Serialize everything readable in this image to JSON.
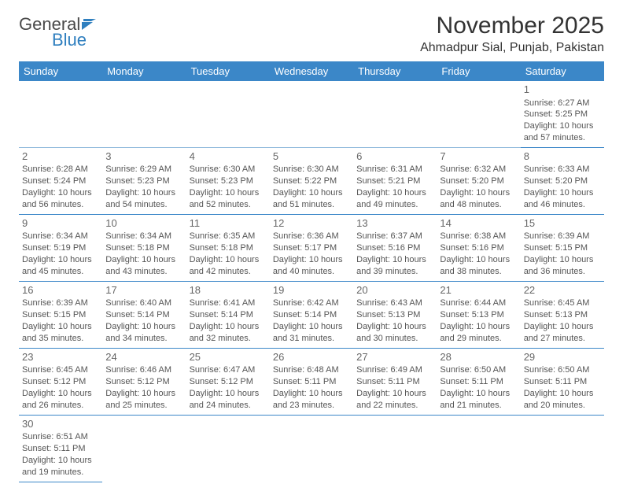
{
  "logo": {
    "word1": "General",
    "word2": "Blue"
  },
  "title": "November 2025",
  "location": "Ahmadpur Sial, Punjab, Pakistan",
  "colors": {
    "header_bg": "#3b87c8",
    "header_text": "#ffffff",
    "border": "#3b87c8",
    "text": "#555555",
    "logo_gray": "#4a4a4a",
    "logo_blue": "#2f7fbf"
  },
  "weekdays": [
    "Sunday",
    "Monday",
    "Tuesday",
    "Wednesday",
    "Thursday",
    "Friday",
    "Saturday"
  ],
  "labels": {
    "sunrise": "Sunrise:",
    "sunset": "Sunset:",
    "daylight": "Daylight:"
  },
  "weeks": [
    [
      null,
      null,
      null,
      null,
      null,
      null,
      {
        "n": "1",
        "sr": "6:27 AM",
        "ss": "5:25 PM",
        "dl": "10 hours and 57 minutes."
      }
    ],
    [
      {
        "n": "2",
        "sr": "6:28 AM",
        "ss": "5:24 PM",
        "dl": "10 hours and 56 minutes."
      },
      {
        "n": "3",
        "sr": "6:29 AM",
        "ss": "5:23 PM",
        "dl": "10 hours and 54 minutes."
      },
      {
        "n": "4",
        "sr": "6:30 AM",
        "ss": "5:23 PM",
        "dl": "10 hours and 52 minutes."
      },
      {
        "n": "5",
        "sr": "6:30 AM",
        "ss": "5:22 PM",
        "dl": "10 hours and 51 minutes."
      },
      {
        "n": "6",
        "sr": "6:31 AM",
        "ss": "5:21 PM",
        "dl": "10 hours and 49 minutes."
      },
      {
        "n": "7",
        "sr": "6:32 AM",
        "ss": "5:20 PM",
        "dl": "10 hours and 48 minutes."
      },
      {
        "n": "8",
        "sr": "6:33 AM",
        "ss": "5:20 PM",
        "dl": "10 hours and 46 minutes."
      }
    ],
    [
      {
        "n": "9",
        "sr": "6:34 AM",
        "ss": "5:19 PM",
        "dl": "10 hours and 45 minutes."
      },
      {
        "n": "10",
        "sr": "6:34 AM",
        "ss": "5:18 PM",
        "dl": "10 hours and 43 minutes."
      },
      {
        "n": "11",
        "sr": "6:35 AM",
        "ss": "5:18 PM",
        "dl": "10 hours and 42 minutes."
      },
      {
        "n": "12",
        "sr": "6:36 AM",
        "ss": "5:17 PM",
        "dl": "10 hours and 40 minutes."
      },
      {
        "n": "13",
        "sr": "6:37 AM",
        "ss": "5:16 PM",
        "dl": "10 hours and 39 minutes."
      },
      {
        "n": "14",
        "sr": "6:38 AM",
        "ss": "5:16 PM",
        "dl": "10 hours and 38 minutes."
      },
      {
        "n": "15",
        "sr": "6:39 AM",
        "ss": "5:15 PM",
        "dl": "10 hours and 36 minutes."
      }
    ],
    [
      {
        "n": "16",
        "sr": "6:39 AM",
        "ss": "5:15 PM",
        "dl": "10 hours and 35 minutes."
      },
      {
        "n": "17",
        "sr": "6:40 AM",
        "ss": "5:14 PM",
        "dl": "10 hours and 34 minutes."
      },
      {
        "n": "18",
        "sr": "6:41 AM",
        "ss": "5:14 PM",
        "dl": "10 hours and 32 minutes."
      },
      {
        "n": "19",
        "sr": "6:42 AM",
        "ss": "5:14 PM",
        "dl": "10 hours and 31 minutes."
      },
      {
        "n": "20",
        "sr": "6:43 AM",
        "ss": "5:13 PM",
        "dl": "10 hours and 30 minutes."
      },
      {
        "n": "21",
        "sr": "6:44 AM",
        "ss": "5:13 PM",
        "dl": "10 hours and 29 minutes."
      },
      {
        "n": "22",
        "sr": "6:45 AM",
        "ss": "5:13 PM",
        "dl": "10 hours and 27 minutes."
      }
    ],
    [
      {
        "n": "23",
        "sr": "6:45 AM",
        "ss": "5:12 PM",
        "dl": "10 hours and 26 minutes."
      },
      {
        "n": "24",
        "sr": "6:46 AM",
        "ss": "5:12 PM",
        "dl": "10 hours and 25 minutes."
      },
      {
        "n": "25",
        "sr": "6:47 AM",
        "ss": "5:12 PM",
        "dl": "10 hours and 24 minutes."
      },
      {
        "n": "26",
        "sr": "6:48 AM",
        "ss": "5:11 PM",
        "dl": "10 hours and 23 minutes."
      },
      {
        "n": "27",
        "sr": "6:49 AM",
        "ss": "5:11 PM",
        "dl": "10 hours and 22 minutes."
      },
      {
        "n": "28",
        "sr": "6:50 AM",
        "ss": "5:11 PM",
        "dl": "10 hours and 21 minutes."
      },
      {
        "n": "29",
        "sr": "6:50 AM",
        "ss": "5:11 PM",
        "dl": "10 hours and 20 minutes."
      }
    ],
    [
      {
        "n": "30",
        "sr": "6:51 AM",
        "ss": "5:11 PM",
        "dl": "10 hours and 19 minutes."
      },
      null,
      null,
      null,
      null,
      null,
      null
    ]
  ]
}
